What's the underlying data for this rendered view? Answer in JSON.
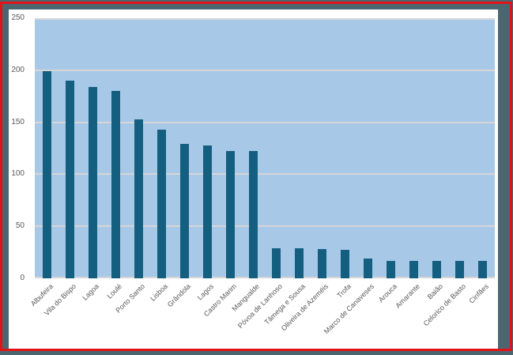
{
  "window": {
    "frame_color": "#4c6670",
    "page_color": "#ffffff",
    "annotation_border_color": "#e21318"
  },
  "chart_data": {
    "type": "bar",
    "title": "",
    "xlabel": "",
    "ylabel": "",
    "categories": [
      "Albufeira",
      "Vila do Bispo",
      "Lagoa",
      "Loulé",
      "Porto Santo",
      "Lisboa",
      "Grândola",
      "Lagos",
      "Castro Marim",
      "Mangualde",
      "Póvoa de Lanhoso",
      "Tâmega e Sousa",
      "Oliveira de Azeméis",
      "Trofa",
      "Marco de Canaveses",
      "Arouca",
      "Amarante",
      "Baião",
      "Celorico de Basto",
      "Cinfães"
    ],
    "values": [
      199,
      190,
      184,
      180,
      153,
      143,
      129,
      128,
      122,
      122,
      29,
      29,
      28,
      27,
      19,
      17,
      17,
      17,
      17,
      17
    ],
    "ylim": [
      0,
      250
    ],
    "yticks": [
      0,
      50,
      100,
      150,
      200,
      250
    ],
    "grid": true,
    "legend_position": "none",
    "bar_color": "#145e80",
    "plot_background": "#a8c8e8",
    "gridline_color": "#d6d6d6",
    "tick_label_color": "#595959"
  }
}
